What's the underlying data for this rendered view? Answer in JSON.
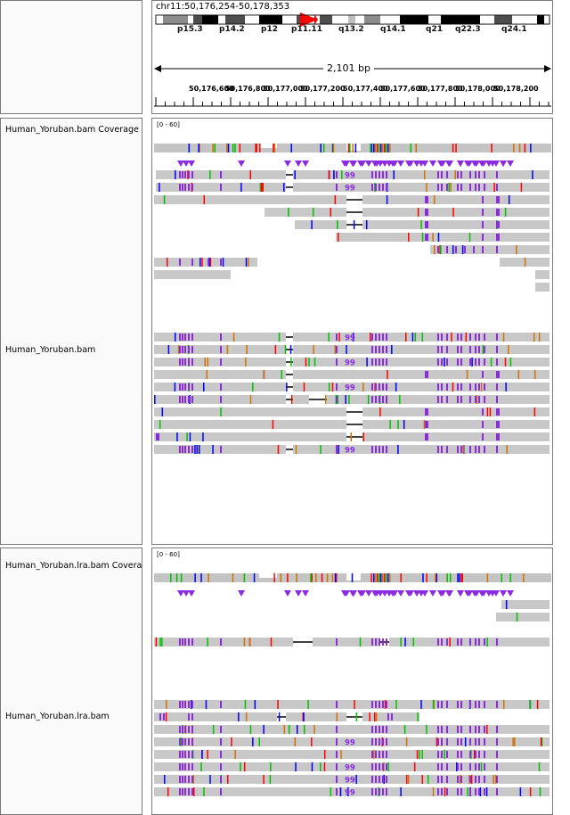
{
  "locus": "chr11:50,176,254-50,178,353",
  "ideogram": {
    "bands": [
      "p15.3",
      "p14.2",
      "p12",
      "p11.11",
      "q13.2",
      "q14.1",
      "q21",
      "q22.3",
      "q24.1"
    ]
  },
  "ruler": {
    "span": "2,101 bp",
    "ticks": [
      "50,176,600",
      "50,176,800",
      "50,177,000",
      "50,177,200",
      "50,177,400",
      "50,177,600",
      "50,177,800",
      "50,178,000",
      "50,178,200"
    ]
  },
  "tracks": [
    {
      "name": "Human_Yoruban.bam Coverage",
      "range": "[0 - 60]"
    },
    {
      "name": "Human_Yoruban.bam"
    },
    {
      "name": "Human_Yoruban.lra.bam Coverage",
      "range": "[0 - 60]"
    },
    {
      "name": "Human_Yoruban.lra.bam"
    }
  ],
  "insertion_label": "99",
  "colors": {
    "read": "#c8c8c8",
    "insertion": "#8a2be2",
    "mismatch_A": "#00c000",
    "mismatch_C": "#0000ff",
    "mismatch_G": "#d17105",
    "mismatch_T": "#ff0000",
    "centromere": "#ff0000"
  }
}
